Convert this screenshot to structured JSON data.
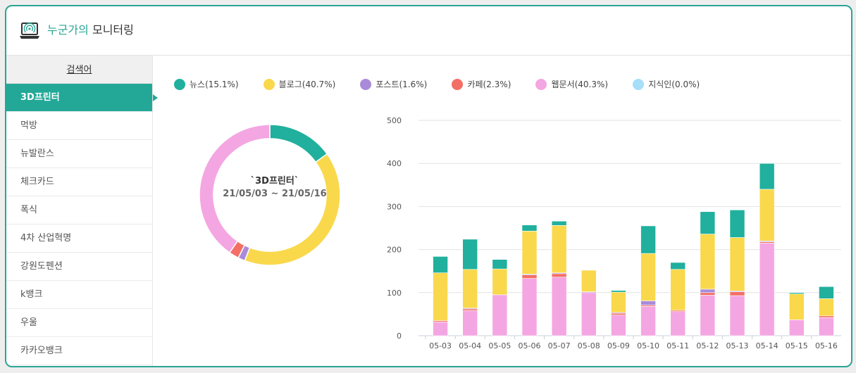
{
  "header": {
    "title_accent": "누군가의",
    "title_rest": "모니터링",
    "icon": "laptop-signal-icon"
  },
  "sidebar": {
    "heading": "검색어",
    "items": [
      "3D프린터",
      "먹방",
      "뉴발란스",
      "체크카드",
      "폭식",
      "4차 산업혁명",
      "강원도펜션",
      "k뱅크",
      "우울",
      "카카오뱅크"
    ],
    "active_index": 0
  },
  "legend": [
    {
      "label": "뉴스(15.1%)",
      "color": "#20b09d"
    },
    {
      "label": "블로그(40.7%)",
      "color": "#f9d84c"
    },
    {
      "label": "포스트(1.6%)",
      "color": "#a98bd9"
    },
    {
      "label": "카페(2.3%)",
      "color": "#f36f65"
    },
    {
      "label": "웹문서(40.3%)",
      "color": "#f4a6e2"
    },
    {
      "label": "지식인(0.0%)",
      "color": "#a7def9"
    }
  ],
  "chart_data": [
    {
      "type": "pie",
      "donut": true,
      "labels": [
        "뉴스",
        "블로그",
        "포스트",
        "카페",
        "웹문서",
        "지식인"
      ],
      "values": [
        15.1,
        40.7,
        1.6,
        2.3,
        40.3,
        0.0
      ],
      "colors": [
        "#20b09d",
        "#f9d84c",
        "#a98bd9",
        "#f36f65",
        "#f4a6e2",
        "#a7def9"
      ],
      "center_title": "`3D프린터`",
      "center_range": "21/05/03 ~ 21/05/16"
    },
    {
      "type": "bar",
      "stacked": true,
      "categories": [
        "05-03",
        "05-04",
        "05-05",
        "05-06",
        "05-07",
        "05-08",
        "05-09",
        "05-10",
        "05-11",
        "05-12",
        "05-13",
        "05-14",
        "05-15",
        "05-16"
      ],
      "y_ticks": [
        "0",
        "100",
        "200",
        "300",
        "400",
        "500"
      ],
      "ylim": [
        0,
        500
      ],
      "grid": true,
      "series": [
        {
          "name": "웹문서",
          "color": "#f4a6e2",
          "values": [
            32,
            58,
            95,
            133,
            136,
            100,
            48,
            68,
            56,
            94,
            93,
            215,
            37,
            42
          ]
        },
        {
          "name": "카페",
          "color": "#f36f65",
          "values": [
            3,
            4,
            0,
            8,
            8,
            0,
            4,
            3,
            3,
            6,
            9,
            3,
            0,
            4
          ]
        },
        {
          "name": "포스트",
          "color": "#a98bd9",
          "values": [
            0,
            2,
            0,
            2,
            2,
            2,
            2,
            10,
            0,
            8,
            2,
            2,
            0,
            0
          ]
        },
        {
          "name": "블로그",
          "color": "#f9d84c",
          "values": [
            111,
            90,
            60,
            100,
            110,
            50,
            47,
            110,
            95,
            128,
            124,
            120,
            60,
            40
          ]
        },
        {
          "name": "뉴스",
          "color": "#20b09d",
          "values": [
            38,
            70,
            22,
            14,
            10,
            0,
            4,
            64,
            16,
            52,
            64,
            60,
            3,
            28
          ]
        },
        {
          "name": "지식인",
          "color": "#a7def9",
          "values": [
            0,
            0,
            0,
            0,
            0,
            0,
            0,
            0,
            0,
            0,
            0,
            0,
            0,
            0
          ]
        }
      ]
    }
  ]
}
